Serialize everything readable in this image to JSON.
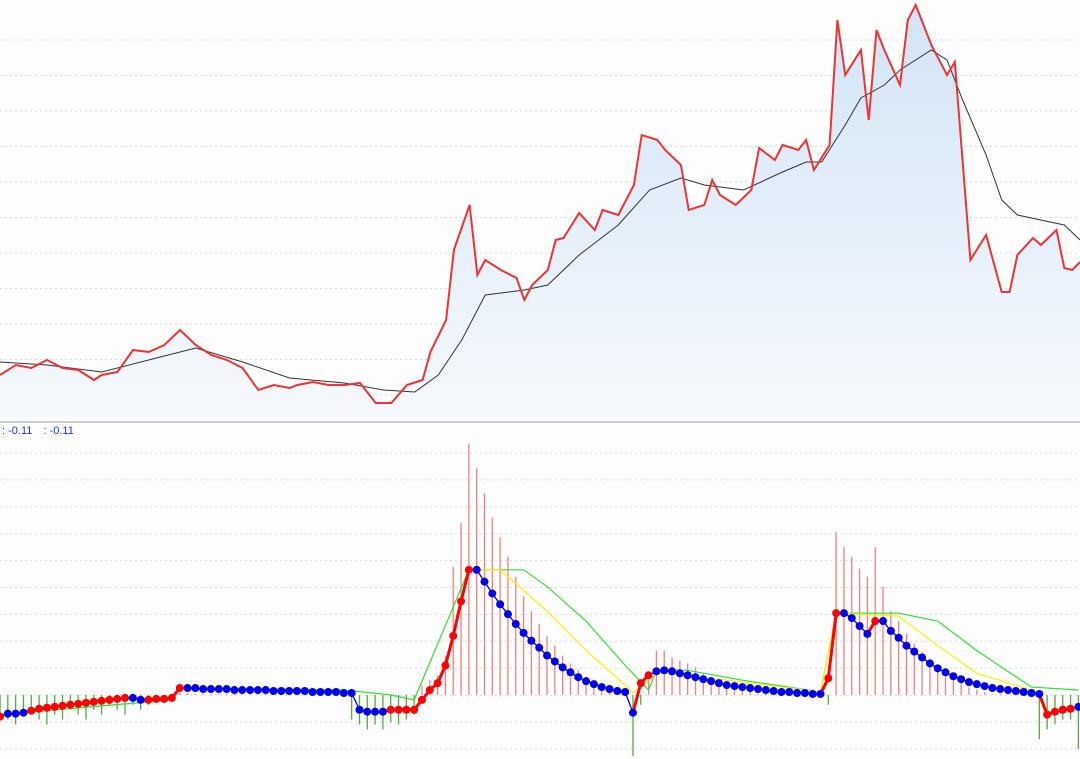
{
  "readout": {
    "value_a": ": -0.11",
    "value_b": ": -0.11"
  },
  "colors": {
    "price": "#ee3333",
    "ma": "#333333",
    "area_top": "#d2e4f6",
    "area_bottom": "#f6f9fd",
    "dot_up": "#ff0000",
    "dot_down": "#0000ee",
    "hist_up": "#f08080",
    "hist_down": "#55aa44",
    "yellow_line": "#ffee00",
    "green_line": "#33dd33",
    "grid": "#d8d8d8",
    "separator": "#cccccc"
  },
  "chart_data": [
    {
      "type": "line",
      "panel": "upper",
      "grid": true,
      "xlim": [
        0,
        138
      ],
      "ylim": [
        0,
        420
      ],
      "series": [
        {
          "role": "price",
          "area_fill": true,
          "points": [
            [
              0,
              45
            ],
            [
              2,
              55
            ],
            [
              4,
              52
            ],
            [
              6,
              60
            ],
            [
              8,
              52
            ],
            [
              10,
              50
            ],
            [
              12,
              40
            ],
            [
              13,
              45
            ],
            [
              15,
              48
            ],
            [
              17,
              70
            ],
            [
              19,
              68
            ],
            [
              21,
              75
            ],
            [
              23,
              90
            ],
            [
              25,
              75
            ],
            [
              27,
              65
            ],
            [
              29,
              60
            ],
            [
              31,
              52
            ],
            [
              33,
              30
            ],
            [
              35,
              35
            ],
            [
              37,
              32
            ],
            [
              38,
              35
            ],
            [
              40,
              38
            ],
            [
              42,
              35
            ],
            [
              44,
              35
            ],
            [
              46,
              37
            ],
            [
              48,
              17
            ],
            [
              50,
              17
            ],
            [
              52,
              35
            ],
            [
              54,
              40
            ],
            [
              55,
              68
            ],
            [
              57,
              100
            ],
            [
              58,
              170
            ],
            [
              60,
              215
            ],
            [
              61,
              145
            ],
            [
              62,
              160
            ],
            [
              64,
              150
            ],
            [
              66,
              142
            ],
            [
              67,
              120
            ],
            [
              68,
              135
            ],
            [
              70,
              150
            ],
            [
              71,
              180
            ],
            [
              72,
              182
            ],
            [
              74,
              207
            ],
            [
              76,
              190
            ],
            [
              77,
              210
            ],
            [
              79,
              205
            ],
            [
              80,
              220
            ],
            [
              81,
              235
            ],
            [
              82,
              285
            ],
            [
              84,
              280
            ],
            [
              85,
              270
            ],
            [
              87,
              255
            ],
            [
              88,
              210
            ],
            [
              90,
              215
            ],
            [
              91,
              240
            ],
            [
              92,
              225
            ],
            [
              94,
              215
            ],
            [
              96,
              230
            ],
            [
              97,
              272
            ],
            [
              99,
              260
            ],
            [
              100,
              275
            ],
            [
              102,
              270
            ],
            [
              103,
              280
            ],
            [
              104,
              250
            ],
            [
              106,
              275
            ],
            [
              107,
              400
            ],
            [
              108,
              345
            ],
            [
              110,
              370
            ],
            [
              111,
              300
            ],
            [
              112,
              390
            ],
            [
              113,
              370
            ],
            [
              115,
              335
            ],
            [
              116,
              400
            ],
            [
              117,
              415
            ],
            [
              119,
              375
            ],
            [
              121,
              345
            ],
            [
              122,
              358
            ],
            [
              124,
              160
            ],
            [
              126,
              185
            ],
            [
              128,
              128
            ],
            [
              129,
              128
            ],
            [
              130,
              165
            ],
            [
              132,
              182
            ],
            [
              133,
              175
            ],
            [
              135,
              190
            ],
            [
              136,
              152
            ],
            [
              137,
              150
            ],
            [
              138,
              158
            ]
          ]
        },
        {
          "role": "moving-average",
          "points": [
            [
              0,
              58
            ],
            [
              6,
              55
            ],
            [
              13,
              48
            ],
            [
              19,
              60
            ],
            [
              25,
              72
            ],
            [
              31,
              58
            ],
            [
              37,
              42
            ],
            [
              44,
              37
            ],
            [
              49,
              30
            ],
            [
              53,
              28
            ],
            [
              56,
              45
            ],
            [
              59,
              80
            ],
            [
              62,
              125
            ],
            [
              67,
              130
            ],
            [
              70,
              135
            ],
            [
              74,
              165
            ],
            [
              79,
              195
            ],
            [
              83,
              230
            ],
            [
              87,
              242
            ],
            [
              90,
              235
            ],
            [
              95,
              230
            ],
            [
              100,
              248
            ],
            [
              103,
              258
            ],
            [
              105,
              258
            ],
            [
              108,
              295
            ],
            [
              110,
              322
            ],
            [
              113,
              335
            ],
            [
              115,
              350
            ],
            [
              119,
              370
            ],
            [
              121,
              360
            ],
            [
              123,
              320
            ],
            [
              126,
              265
            ],
            [
              128,
              220
            ],
            [
              130,
              205
            ],
            [
              133,
              200
            ],
            [
              136,
              195
            ],
            [
              138,
              180
            ]
          ]
        }
      ]
    },
    {
      "type": "bar",
      "panel": "lower",
      "grid": true,
      "xlim": [
        0,
        138
      ],
      "ylim": [
        -65,
        275
      ],
      "histogram": [
        -20,
        -25,
        -30,
        -20,
        -15,
        -25,
        -30,
        -20,
        -25,
        -15,
        -20,
        -25,
        -15,
        -20,
        -10,
        -15,
        -20,
        -10,
        -15,
        -10,
        -5,
        -8,
        -5,
        2,
        2,
        1,
        1,
        1,
        1,
        1,
        1,
        1,
        1,
        1,
        1,
        1,
        1,
        1,
        1,
        1,
        1,
        1,
        1,
        1,
        1,
        -25,
        -30,
        -35,
        -30,
        -35,
        -28,
        -30,
        -25,
        -20,
        10,
        15,
        20,
        40,
        130,
        175,
        255,
        230,
        205,
        180,
        160,
        140,
        120,
        100,
        85,
        72,
        60,
        50,
        40,
        32,
        25,
        18,
        12,
        8,
        5,
        3,
        0,
        -62,
        -10,
        15,
        45,
        45,
        38,
        35,
        32,
        28,
        22,
        18,
        14,
        10,
        7,
        5,
        3,
        1,
        1,
        1,
        1,
        1,
        1,
        1,
        1,
        1,
        -10,
        165,
        150,
        140,
        128,
        120,
        150,
        110,
        85,
        75,
        62,
        52,
        44,
        36,
        28,
        22,
        16,
        12,
        8,
        5,
        3,
        1,
        1,
        1,
        1,
        1,
        1,
        -45,
        -35,
        -30,
        -25,
        -25,
        -55
      ],
      "dots": {
        "values": [
          -22,
          -19,
          -19,
          -18,
          -16,
          -14,
          -13,
          -12,
          -11,
          -10,
          -9,
          -8,
          -7,
          -6,
          -5,
          -4,
          -3,
          -3,
          -5,
          -5,
          -4,
          -4,
          -3,
          7,
          7,
          7,
          6,
          6,
          6,
          6,
          5,
          5,
          5,
          5,
          5,
          4,
          4,
          4,
          4,
          4,
          3,
          3,
          3,
          3,
          2,
          2,
          -15,
          -17,
          -17,
          -17,
          -15,
          -15,
          -15,
          -15,
          -5,
          5,
          12,
          30,
          60,
          95,
          127,
          127,
          115,
          103,
          92,
          82,
          72,
          63,
          55,
          48,
          40,
          34,
          28,
          23,
          18,
          14,
          11,
          8,
          6,
          4,
          3,
          -18,
          12,
          20,
          24,
          25,
          24,
          22,
          20,
          18,
          16,
          14,
          12,
          10,
          9,
          8,
          7,
          6,
          5,
          4,
          3,
          3,
          2,
          2,
          1,
          1,
          17,
          83,
          83,
          78,
          70,
          62,
          75,
          75,
          65,
          58,
          50,
          44,
          38,
          32,
          27,
          23,
          19,
          16,
          13,
          11,
          9,
          7,
          6,
          5,
          4,
          3,
          2,
          1,
          -20,
          -17,
          -15,
          -14,
          -12
        ],
        "colors": "rbbbrrrrrrrrrrrrrbbrrrrrbbbbbbbbbbbbbbbbbbbbbbbbbbrrrrrrrrrrrbbbbbbbbbbbbbbbbbbbbbrrbbbbbbbbbbbbbbbbbbbbbbrrbbbbrbbbbbbbbbbbbbbbbbbbbbrrrr"
      },
      "lines": [
        {
          "role": "green-line",
          "points": [
            [
              0,
              -20
            ],
            [
              22,
              -5
            ],
            [
              23,
              7
            ],
            [
              44,
              5
            ],
            [
              50,
              0
            ],
            [
              53,
              -5
            ],
            [
              60,
              127
            ],
            [
              67,
              127
            ],
            [
              70,
              110
            ],
            [
              75,
              75
            ],
            [
              80,
              30
            ],
            [
              83,
              5
            ],
            [
              84,
              25
            ],
            [
              88,
              25
            ],
            [
              95,
              15
            ],
            [
              105,
              3
            ],
            [
              107,
              83
            ],
            [
              115,
              83
            ],
            [
              120,
              75
            ],
            [
              125,
              45
            ],
            [
              132,
              8
            ],
            [
              138,
              5
            ]
          ]
        },
        {
          "role": "yellow-line",
          "points": [
            [
              60,
              127
            ],
            [
              64,
              127
            ],
            [
              70,
              85
            ],
            [
              75,
              45
            ],
            [
              80,
              10
            ],
            [
              81,
              2
            ],
            [
              84,
              22
            ],
            [
              88,
              20
            ],
            [
              105,
              3
            ],
            [
              107,
              83
            ],
            [
              115,
              80
            ],
            [
              120,
              50
            ],
            [
              125,
              22
            ],
            [
              132,
              5
            ]
          ]
        }
      ]
    }
  ]
}
